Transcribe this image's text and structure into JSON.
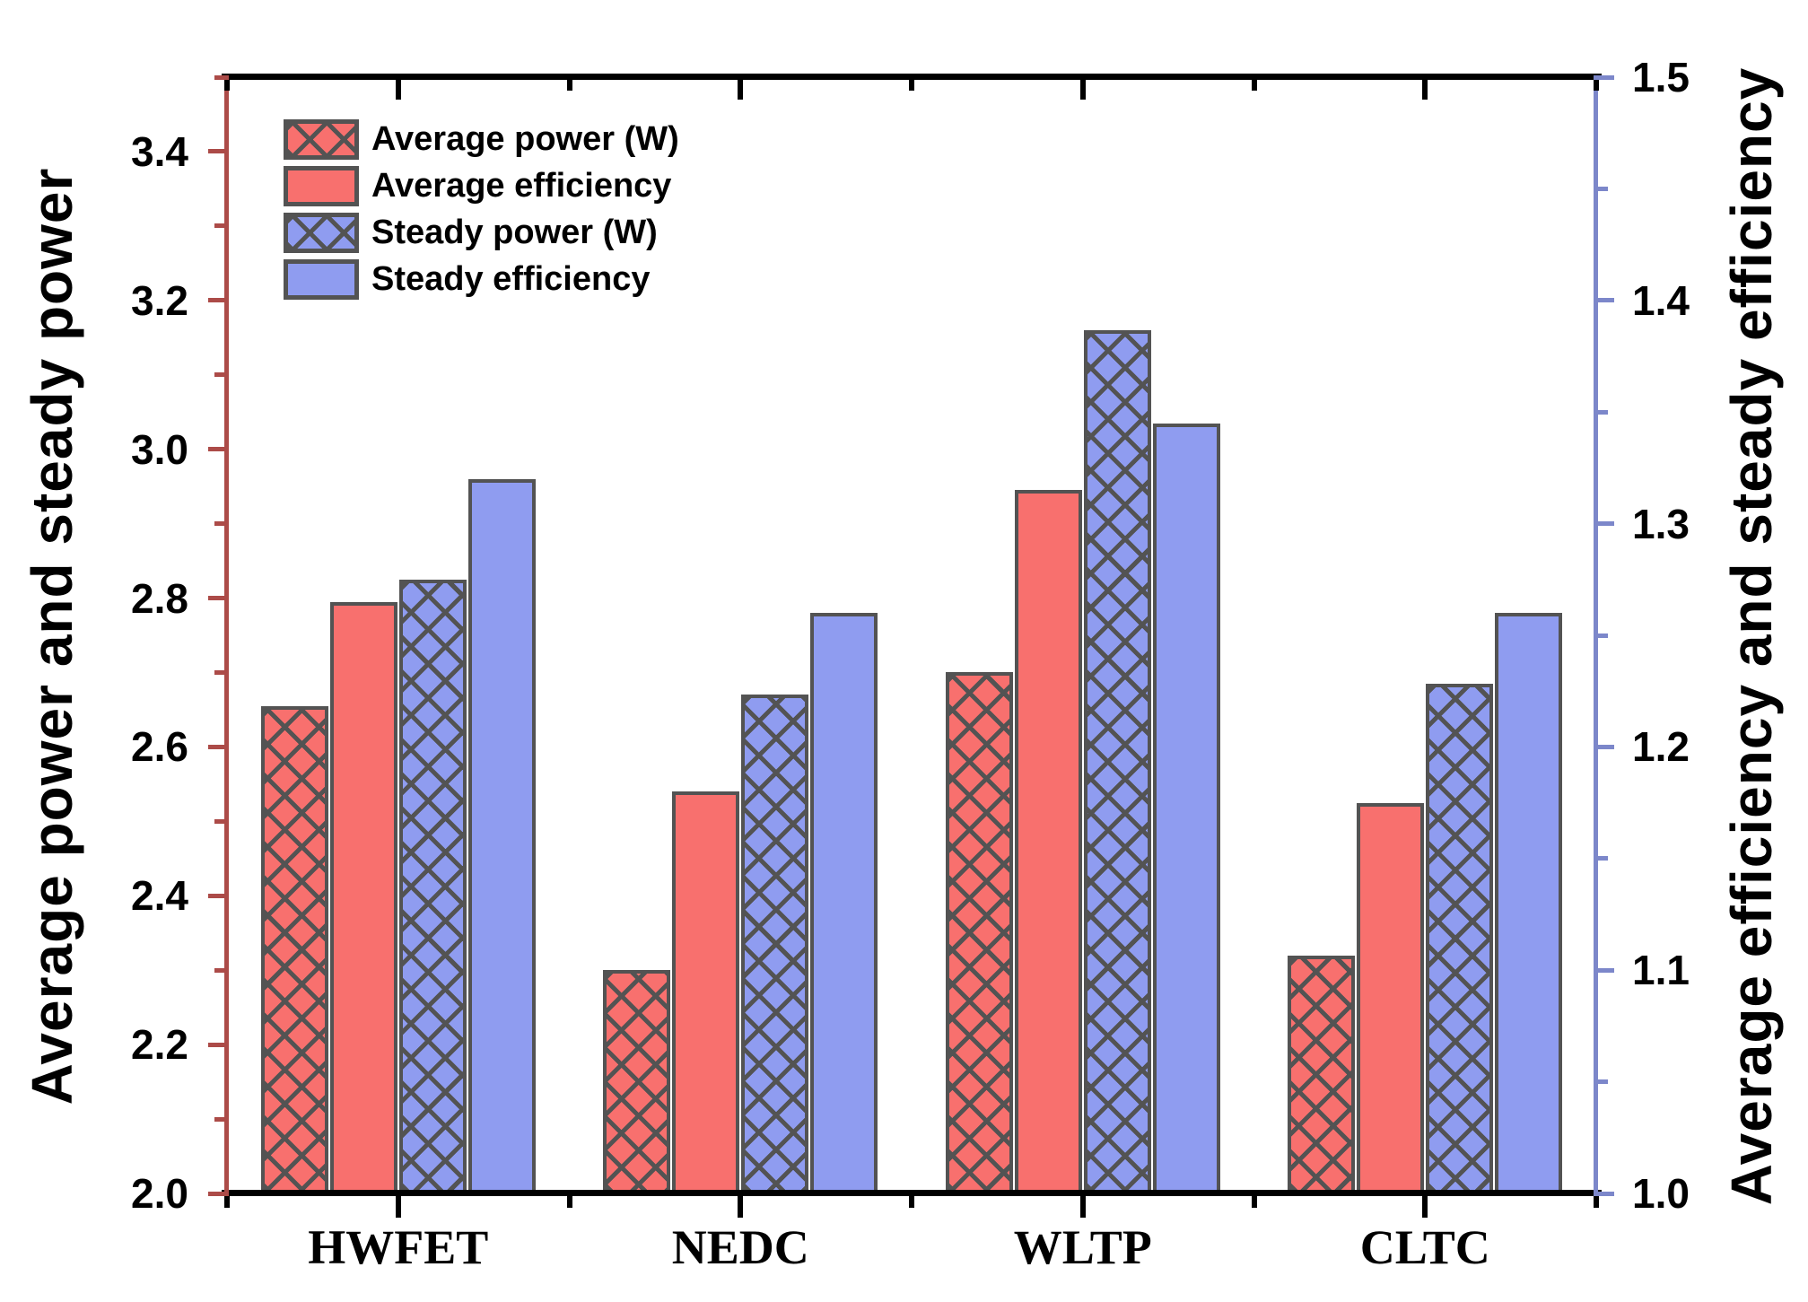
{
  "figure": {
    "colors": {
      "background": "#ffffff",
      "red_fill": "#f8706e",
      "blue_fill": "#8f9cf0",
      "bar_edge": "#535353",
      "left_axis": "#ac4b48",
      "right_axis": "#7c87ca",
      "black_axis": "#000000",
      "text": "#000000"
    }
  },
  "chart_data": {
    "type": "bar",
    "categories": [
      "HWFET",
      "NEDC",
      "WLTP",
      "CLTC"
    ],
    "series": [
      {
        "name": "Average power (W)",
        "axis": "left",
        "style": "hatch-red",
        "values": [
          2.655,
          2.3,
          2.7,
          2.32
        ]
      },
      {
        "name": "Average efficiency",
        "axis": "right",
        "style": "fill-red",
        "values": [
          1.265,
          1.18,
          1.315,
          1.175
        ]
      },
      {
        "name": "Steady power (W)",
        "axis": "left",
        "style": "hatch-blue",
        "values": [
          2.825,
          2.67,
          3.16,
          2.685
        ]
      },
      {
        "name": "Steady efficiency",
        "axis": "right",
        "style": "fill-blue",
        "values": [
          1.32,
          1.26,
          1.345,
          1.26
        ]
      }
    ],
    "left_axis": {
      "label": "Average power and steady power",
      "min": 2.0,
      "max": 3.5,
      "major_ticks": [
        2.0,
        2.2,
        2.4,
        2.6,
        2.8,
        3.0,
        3.2,
        3.4
      ],
      "tick_labels": [
        "2.0",
        "2.2",
        "2.4",
        "2.6",
        "2.8",
        "3.0",
        "3.2",
        "3.4"
      ],
      "minor_step": 0.1
    },
    "right_axis": {
      "label": "Average efficiency and steady efficiency",
      "min": 1.0,
      "max": 1.5,
      "major_ticks": [
        1.0,
        1.1,
        1.2,
        1.3,
        1.4,
        1.5
      ],
      "tick_labels": [
        "1.0",
        "1.1",
        "1.2",
        "1.3",
        "1.4",
        "1.5"
      ],
      "minor_step": 0.05
    },
    "legend": [
      "Average power (W)",
      "Average efficiency",
      "Steady power (W)",
      "Steady efficiency"
    ],
    "grid": false,
    "legend_position": "top-left"
  }
}
